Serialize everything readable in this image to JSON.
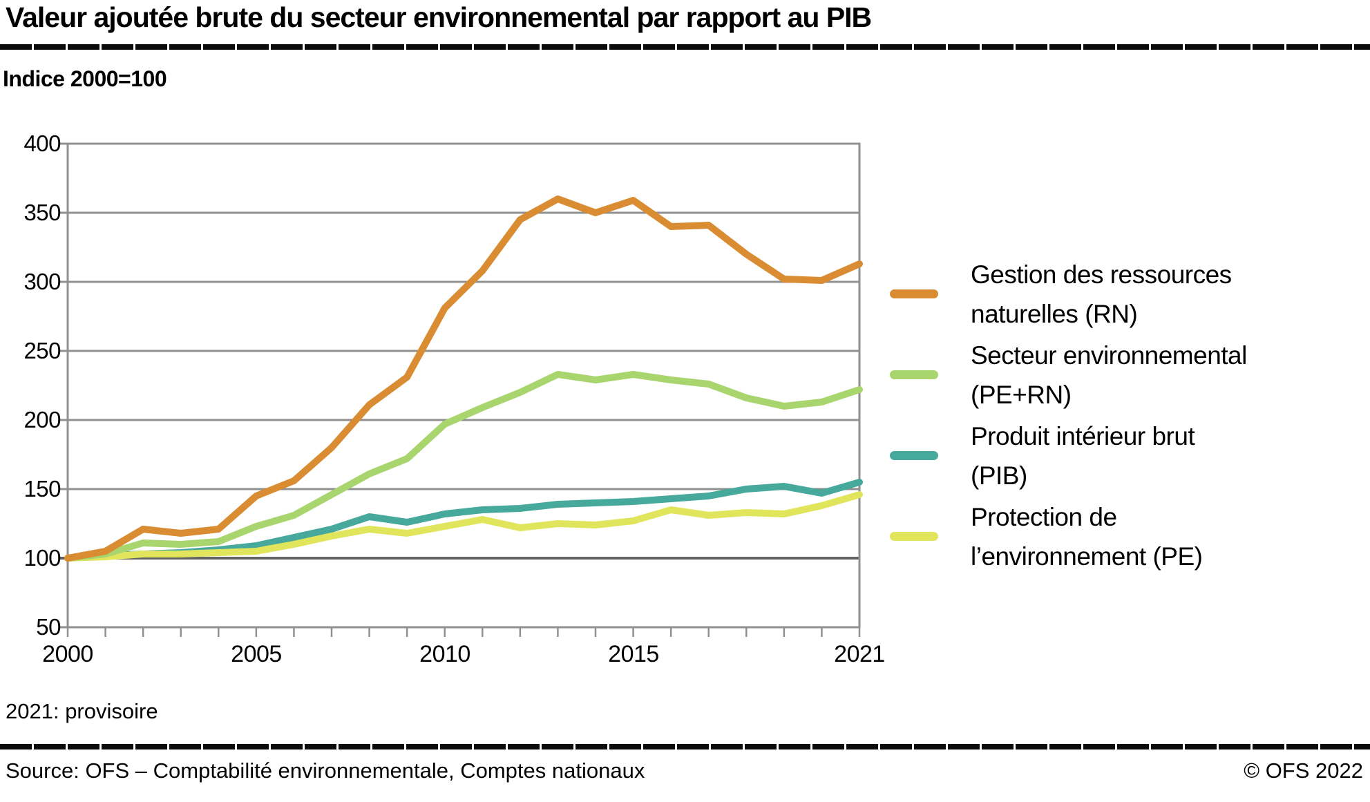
{
  "header": {
    "title": "Valeur ajoutée brute du secteur environnemental par rapport au PIB",
    "subtitle": "Indice 2000=100"
  },
  "footnote": "2021: provisoire",
  "footer": {
    "source": "Source: OFS – Comptabilité environnementale, Comptes nationaux",
    "copyright": "© OFS 2022"
  },
  "colors": {
    "grid": "#909090",
    "grid_baseline": "#636363",
    "rule_black": "#0b0b0b"
  },
  "legend": [
    {
      "line1": "Gestion des ressources",
      "line2": "naturelles (RN)",
      "series_index": 0
    },
    {
      "line1": "Secteur environnemental",
      "line2": "(PE+RN)",
      "series_index": 1
    },
    {
      "line1": "Produit intérieur brut",
      "line2": "(PIB)",
      "series_index": 2
    },
    {
      "line1": "Protection de",
      "line2": "l’environnement (PE)",
      "series_index": 3
    }
  ],
  "chart_data": {
    "type": "line",
    "title": "Valeur ajoutée brute du secteur environnemental par rapport au PIB",
    "unit_label": "Indice 2000=100",
    "grid": true,
    "legend_position": "right",
    "ylim": [
      50,
      400
    ],
    "baseline_value": 100,
    "y_ticks": [
      50,
      100,
      150,
      200,
      250,
      300,
      350,
      400
    ],
    "y_tick_labels": [
      "50",
      "100",
      "150",
      "200",
      "250",
      "300",
      "350",
      "400"
    ],
    "x": [
      2000,
      2001,
      2002,
      2003,
      2004,
      2005,
      2006,
      2007,
      2008,
      2009,
      2010,
      2011,
      2012,
      2013,
      2014,
      2015,
      2016,
      2017,
      2018,
      2019,
      2020,
      2021
    ],
    "x_tick_labels": [
      {
        "label": "2000",
        "year": 2000
      },
      {
        "label": "2005",
        "year": 2005
      },
      {
        "label": "2010",
        "year": 2010
      },
      {
        "label": "2015",
        "year": 2015
      },
      {
        "label": "2021",
        "year": 2021
      }
    ],
    "series": [
      {
        "name": "Gestion des ressources naturelles (RN)",
        "color": "#d98c31",
        "values": [
          100,
          105,
          121,
          118,
          121,
          145,
          156,
          180,
          211,
          231,
          281,
          308,
          345,
          360,
          350,
          359,
          340,
          341,
          320,
          302,
          301,
          313
        ]
      },
      {
        "name": "Secteur environnemental (PE+RN)",
        "color": "#a9d56e",
        "values": [
          100,
          103,
          111,
          110,
          112,
          123,
          131,
          146,
          161,
          172,
          197,
          209,
          220,
          233,
          229,
          233,
          229,
          226,
          216,
          210,
          213,
          222
        ]
      },
      {
        "name": "Produit intérieur brut (PIB)",
        "color": "#47a89c",
        "values": [
          100,
          102,
          103,
          104,
          106,
          109,
          115,
          121,
          130,
          126,
          132,
          135,
          136,
          139,
          140,
          141,
          143,
          145,
          150,
          152,
          147,
          155
        ]
      },
      {
        "name": "Protection de l’environnement (PE)",
        "color": "#e0e55c",
        "values": [
          100,
          101,
          103,
          103,
          104,
          105,
          110,
          116,
          121,
          118,
          123,
          128,
          122,
          125,
          124,
          127,
          135,
          131,
          133,
          132,
          138,
          146
        ]
      }
    ]
  }
}
